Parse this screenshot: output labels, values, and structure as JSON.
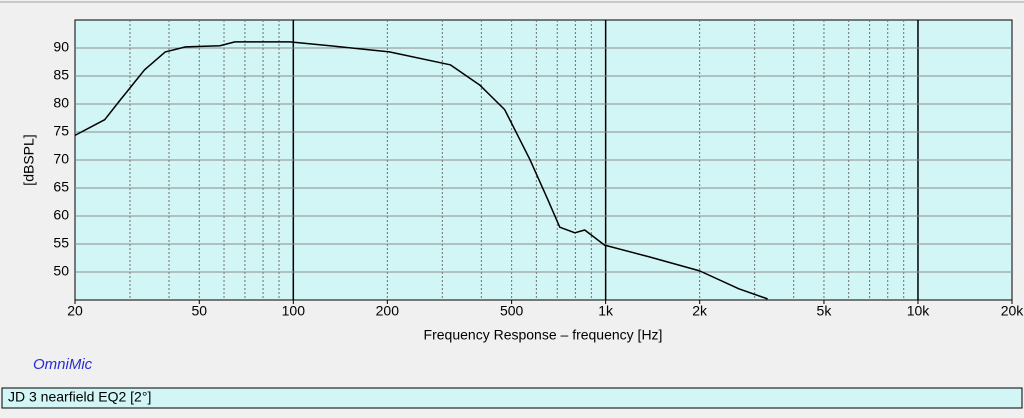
{
  "chart_data": {
    "type": "line",
    "xlabel": "Frequency Response – frequency [Hz]",
    "ylabel": "[dBSPL]",
    "brand": "OmniMic",
    "xscale": "log",
    "xlim": [
      20,
      20000
    ],
    "xticks": [
      20,
      50,
      100,
      200,
      500,
      {
        "value": 1000,
        "label": "1k"
      },
      {
        "value": 2000,
        "label": "2k"
      },
      {
        "value": 5000,
        "label": "5k"
      },
      {
        "value": 10000,
        "label": "10k"
      },
      {
        "value": 20000,
        "label": "20k"
      }
    ],
    "ylim": [
      45,
      95
    ],
    "yticks": [
      50,
      55,
      60,
      65,
      70,
      75,
      80,
      85,
      90
    ],
    "grid": true,
    "x": [
      20,
      24.9,
      28,
      33.4,
      38.9,
      45.2,
      58.2,
      65,
      97.5,
      131,
      203,
      318,
      395,
      475,
      572,
      652,
      713,
      797,
      857,
      992,
      1380,
      2000,
      2670,
      3300
    ],
    "series": [
      {
        "name": "JD 3 nearfield EQ2 [2°]",
        "color": "#000000",
        "values": [
          74.4,
          77.2,
          80.8,
          86.1,
          89.3,
          90.2,
          90.4,
          91.1,
          91.1,
          90.4,
          89.3,
          87,
          83.4,
          79,
          70.1,
          63,
          58,
          57,
          57.5,
          54.8,
          52.7,
          50.2,
          47,
          45.2
        ]
      }
    ]
  }
}
